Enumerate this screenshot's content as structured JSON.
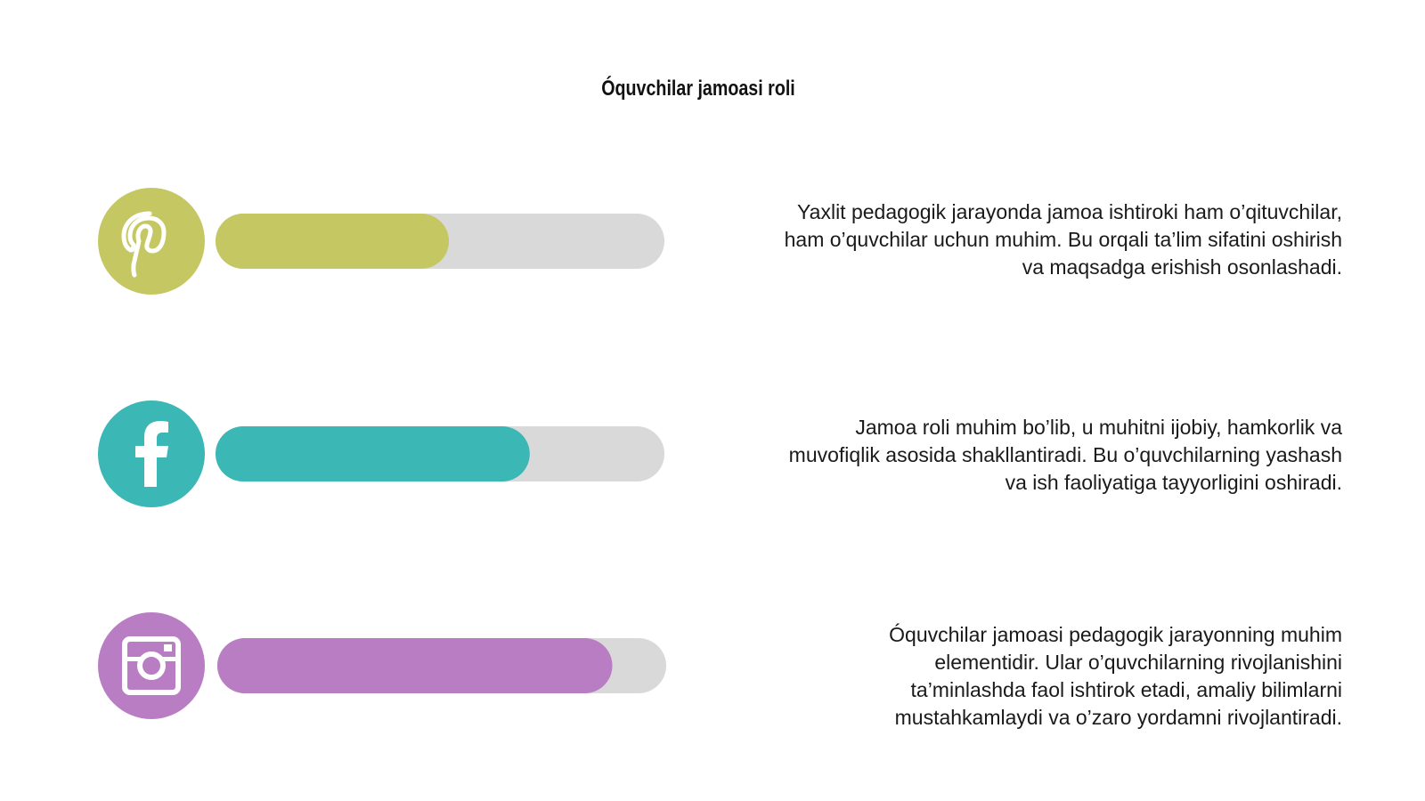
{
  "header": {
    "title": "Óquvchilar jamoasi roli"
  },
  "items": [
    {
      "color": "#c5c862",
      "progress": 52,
      "text": [
        "Yaxlit pedagogik jarayonda jamoa ishtiroki ham o’qituvchilar,",
        "ham o’quvchilar uchun muhim. Bu orqali ta’lim sifatini oshirish",
        "va maqsadga erishish osonlashadi."
      ]
    },
    {
      "color": "#3bb7b5",
      "progress": 70,
      "text": [
        "Jamoa roli muhim bo’lib, u muhitni ijobiy, hamkorlik va",
        "muvofiqlik asosida shakllantiradi. Bu o’quvchilarning yashash",
        "va ish faoliyatiga tayyorligini oshiradi."
      ]
    },
    {
      "color": "#b97dc4",
      "progress": 88,
      "text": [
        "Óquvchilar jamoasi pedagogik jarayonning muhim",
        "elementidir. Ular o’quvchilarning rivojlanishini",
        "ta’minlashda faol ishtirok etadi, amaliy bilimlarni",
        "mustahkamlaydi va o’zaro yordamni rivojlantiradi."
      ]
    }
  ]
}
